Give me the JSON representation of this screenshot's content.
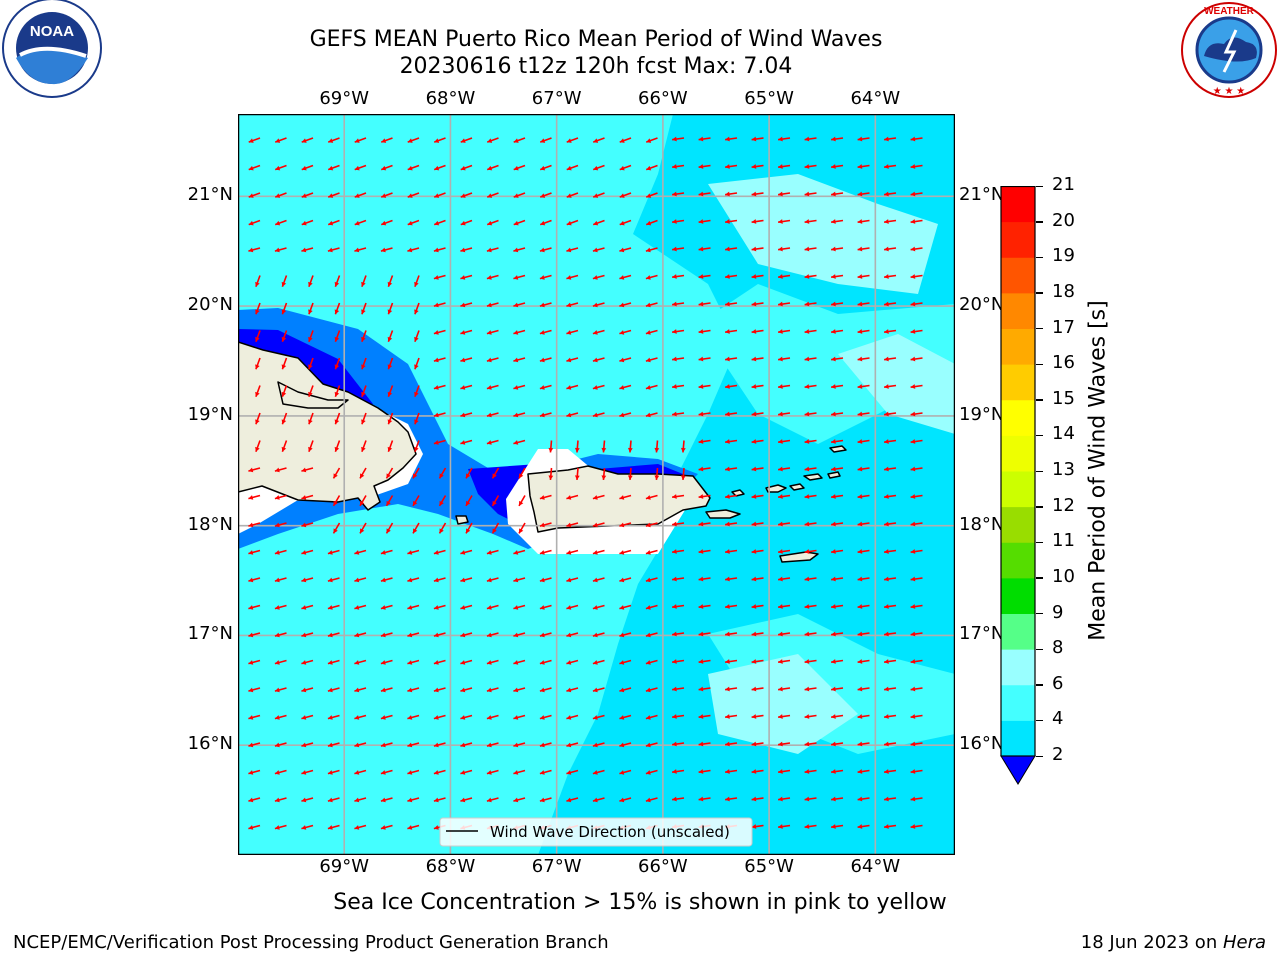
{
  "title": {
    "line1": "GEFS MEAN Puerto Rico Mean Period of Wind Waves",
    "line2": "20230616 t12z 120h fcst   Max: 7.04"
  },
  "logos": {
    "left": {
      "name": "NOAA",
      "ring_text": "NATIONAL OCEANIC AND ATMOSPHERIC ADMINISTRATION · U.S. DEPARTMENT OF COMMERCE"
    },
    "right": {
      "name": "NATIONAL WEATHER SERVICE"
    }
  },
  "map": {
    "lon_labels": [
      "69°W",
      "68°W",
      "67°W",
      "66°W",
      "65°W",
      "64°W"
    ],
    "lat_labels": [
      "21°N",
      "20°N",
      "19°N",
      "18°N",
      "17°N",
      "16°N"
    ],
    "lon_ticks": [
      -69,
      -68,
      -67,
      -66,
      -65,
      -64
    ],
    "lat_ticks": [
      21,
      20,
      19,
      18,
      17,
      16
    ],
    "extent": {
      "lon": [
        -70,
        -63.25
      ],
      "lat": [
        15,
        21.75
      ]
    },
    "grid": true,
    "legend": "Wind Wave Direction (unscaled)",
    "legend_placement": "bottom-center",
    "arrow_color": "#ff0000",
    "land_color": "#eeeedd",
    "gridline_color": "#b0b0b0"
  },
  "colorbar": {
    "label": "Mean Period of Wind Waves [s]",
    "ticks": [
      "2",
      "4",
      "6",
      "8",
      "9",
      "10",
      "11",
      "12",
      "13",
      "14",
      "15",
      "16",
      "17",
      "18",
      "19",
      "20",
      "21"
    ],
    "levels": [
      2,
      4,
      6,
      8,
      9,
      10,
      11,
      12,
      13,
      14,
      15,
      16,
      17,
      18,
      19,
      20,
      21
    ],
    "colors": [
      "#0080ff",
      "#00e5ff",
      "#44ffff",
      "#99ffff",
      "#55ff88",
      "#00dd00",
      "#55dd00",
      "#99dd00",
      "#ccff00",
      "#eeff00",
      "#ffff00",
      "#ffcc00",
      "#ffaa00",
      "#ff8800",
      "#ff5500",
      "#ff2200",
      "#ff0000"
    ],
    "under_color": "#0000ff"
  },
  "note": "Sea Ice Concentration > 15% is shown in pink to yellow",
  "footer": {
    "left": "NCEP/EMC/Verification Post Processing Product Generation Branch",
    "right_prefix": "18 Jun 2023 on ",
    "right_host": "Hera"
  }
}
